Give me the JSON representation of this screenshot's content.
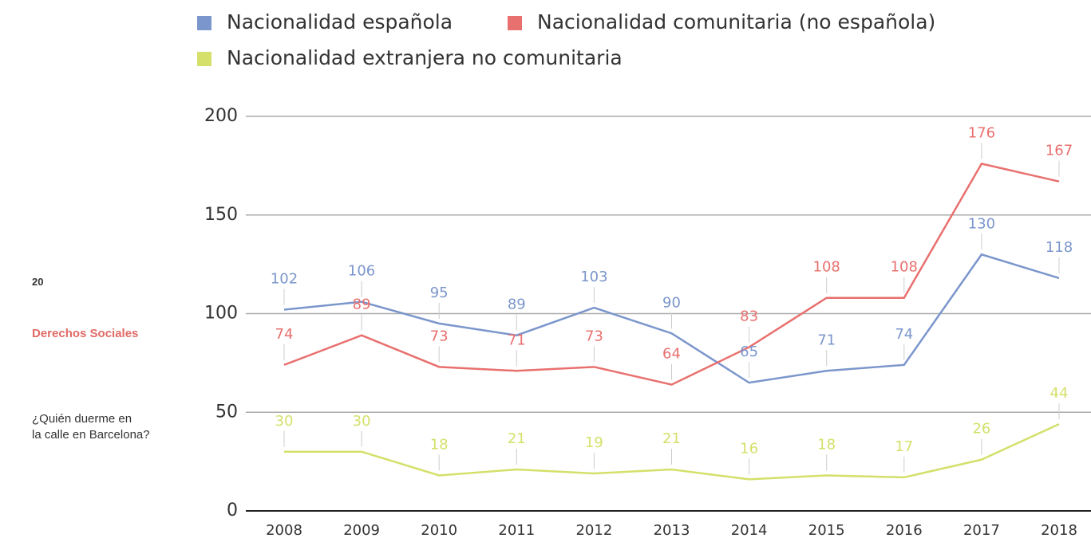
{
  "sidebar": {
    "page_number": "20",
    "section": "Derechos Sociales",
    "subtitle_lines": [
      "¿Quién duerme en",
      "la calle en Barcelona?"
    ]
  },
  "chart_data": {
    "type": "line",
    "categories": [
      "2008",
      "2009",
      "2010",
      "2011",
      "2012",
      "2013",
      "2014",
      "2015",
      "2016",
      "2017",
      "2018"
    ],
    "series": [
      {
        "name": "Nacionalidad española",
        "color": "#7b96cc",
        "values": [
          102,
          106,
          95,
          89,
          103,
          90,
          65,
          71,
          74,
          130,
          118
        ]
      },
      {
        "name": "Nacionalidad comunitaria (no española)",
        "color": "#e8706e",
        "values": [
          74,
          89,
          73,
          71,
          73,
          64,
          83,
          108,
          108,
          176,
          167
        ]
      },
      {
        "name": "Nacionalidad extranjera no comunitaria",
        "color": "#d4e06a",
        "values": [
          30,
          30,
          18,
          21,
          19,
          21,
          16,
          18,
          17,
          26,
          44
        ]
      }
    ],
    "ylim": [
      0,
      200
    ],
    "yticks": [
      0,
      50,
      100,
      150,
      200
    ],
    "grid": true,
    "data_labels": true
  }
}
